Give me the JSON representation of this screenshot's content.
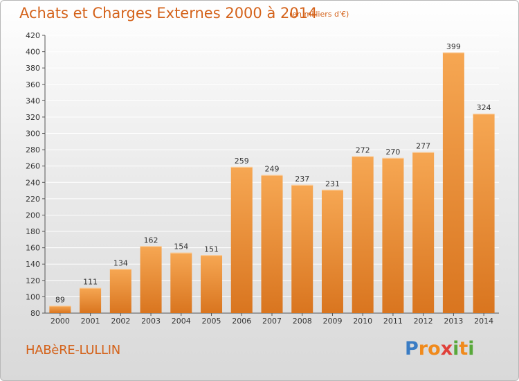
{
  "title": "Achats et Charges Externes 2000 à 2014",
  "subtitle": "(en milliers d'€)",
  "commune": "HABèRE-LULLIN",
  "logo": {
    "text": "Proxiti",
    "letters": [
      "P",
      "r",
      "o",
      "x",
      "i",
      "t",
      "i"
    ],
    "colors": [
      "#3a7cc4",
      "#f08a1c",
      "#f08a1c",
      "#e0403a",
      "#58a83a",
      "#f08a1c",
      "#58a83a"
    ]
  },
  "colors": {
    "accent": "#d4621a",
    "bar_top": "#f6a753",
    "bar_bottom": "#d9751f",
    "grid": "#ffffff"
  },
  "chart_data": {
    "type": "bar",
    "categories": [
      "2000",
      "2001",
      "2002",
      "2003",
      "2004",
      "2005",
      "2006",
      "2007",
      "2008",
      "2009",
      "2010",
      "2011",
      "2012",
      "2013",
      "2014"
    ],
    "values": [
      89,
      111,
      134,
      162,
      154,
      151,
      259,
      249,
      237,
      231,
      272,
      270,
      277,
      399,
      324
    ],
    "title": "Achats et Charges Externes 2000 à 2014",
    "xlabel": "",
    "ylabel": "",
    "ylim": [
      80,
      420
    ],
    "yticks": [
      80,
      100,
      120,
      140,
      160,
      180,
      200,
      220,
      240,
      260,
      280,
      300,
      320,
      340,
      360,
      380,
      400,
      420
    ],
    "grid": true,
    "legend": "none"
  }
}
